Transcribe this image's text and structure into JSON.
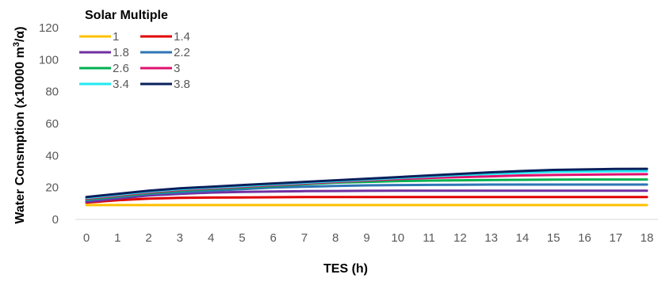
{
  "chart_data": {
    "type": "line",
    "xlabel": "TES (h)",
    "ylabel_main": "Water Consmption (x10000 m",
    "ylabel_sup": "3",
    "ylabel_end": "/α)",
    "legend_title": "Solar Multiple",
    "ylim": [
      0,
      120
    ],
    "yticks": [
      "0",
      "20",
      "40",
      "60",
      "80",
      "100",
      "120"
    ],
    "x": [
      "0",
      "1",
      "2",
      "3",
      "4",
      "5",
      "6",
      "7",
      "8",
      "9",
      "10",
      "11",
      "12",
      "13",
      "14",
      "15",
      "16",
      "17",
      "18"
    ],
    "grid": false,
    "legend_position": "top-left",
    "series": [
      {
        "name": "1",
        "color": "#FFC000",
        "values": [
          9,
          9,
          9,
          9,
          9,
          9,
          9,
          9,
          9,
          9,
          9,
          9,
          9,
          9,
          9,
          9,
          9,
          9,
          9
        ]
      },
      {
        "name": "1.4",
        "color": "#E00000",
        "values": [
          10.5,
          12,
          13,
          13.5,
          13.7,
          13.8,
          13.9,
          14,
          14,
          14,
          14,
          14,
          14,
          14,
          14,
          14,
          14,
          14,
          14
        ]
      },
      {
        "name": "1.8",
        "color": "#7030A0",
        "values": [
          11,
          13,
          15,
          16,
          16.8,
          17.2,
          17.5,
          17.7,
          17.8,
          17.9,
          18,
          18,
          18,
          18,
          18,
          18,
          18,
          18,
          18
        ]
      },
      {
        "name": "2.2",
        "color": "#2E75B6",
        "values": [
          12,
          14,
          16,
          17,
          18,
          19,
          20,
          20.5,
          21,
          21.3,
          21.5,
          21.6,
          21.7,
          21.8,
          21.8,
          21.8,
          21.8,
          21.8,
          21.8
        ]
      },
      {
        "name": "2.6",
        "color": "#00B050",
        "values": [
          12.5,
          14.5,
          16.5,
          18,
          19,
          20,
          21,
          22,
          23,
          23.5,
          24,
          24.3,
          24.5,
          24.7,
          24.8,
          24.9,
          25,
          25,
          25
        ]
      },
      {
        "name": "3",
        "color": "#E0116F",
        "values": [
          13,
          15,
          17,
          18.5,
          19.5,
          20.5,
          21.5,
          22.5,
          23.5,
          24.5,
          25.3,
          26,
          26.5,
          27,
          27.5,
          27.8,
          28,
          28.2,
          28.3
        ]
      },
      {
        "name": "3.4",
        "color": "#22E8F0",
        "values": [
          13.5,
          15.5,
          17.5,
          19,
          20,
          21,
          22,
          23,
          24,
          25,
          26,
          27,
          27.8,
          28.5,
          29.2,
          29.8,
          30,
          30.2,
          30.3
        ]
      },
      {
        "name": "3.8",
        "color": "#0A1F5C",
        "values": [
          14,
          16,
          18,
          19.5,
          20.5,
          21.5,
          22.5,
          23.5,
          24.5,
          25.5,
          26.5,
          27.5,
          28.5,
          29.5,
          30.3,
          31,
          31.3,
          31.6,
          31.7
        ]
      }
    ]
  }
}
